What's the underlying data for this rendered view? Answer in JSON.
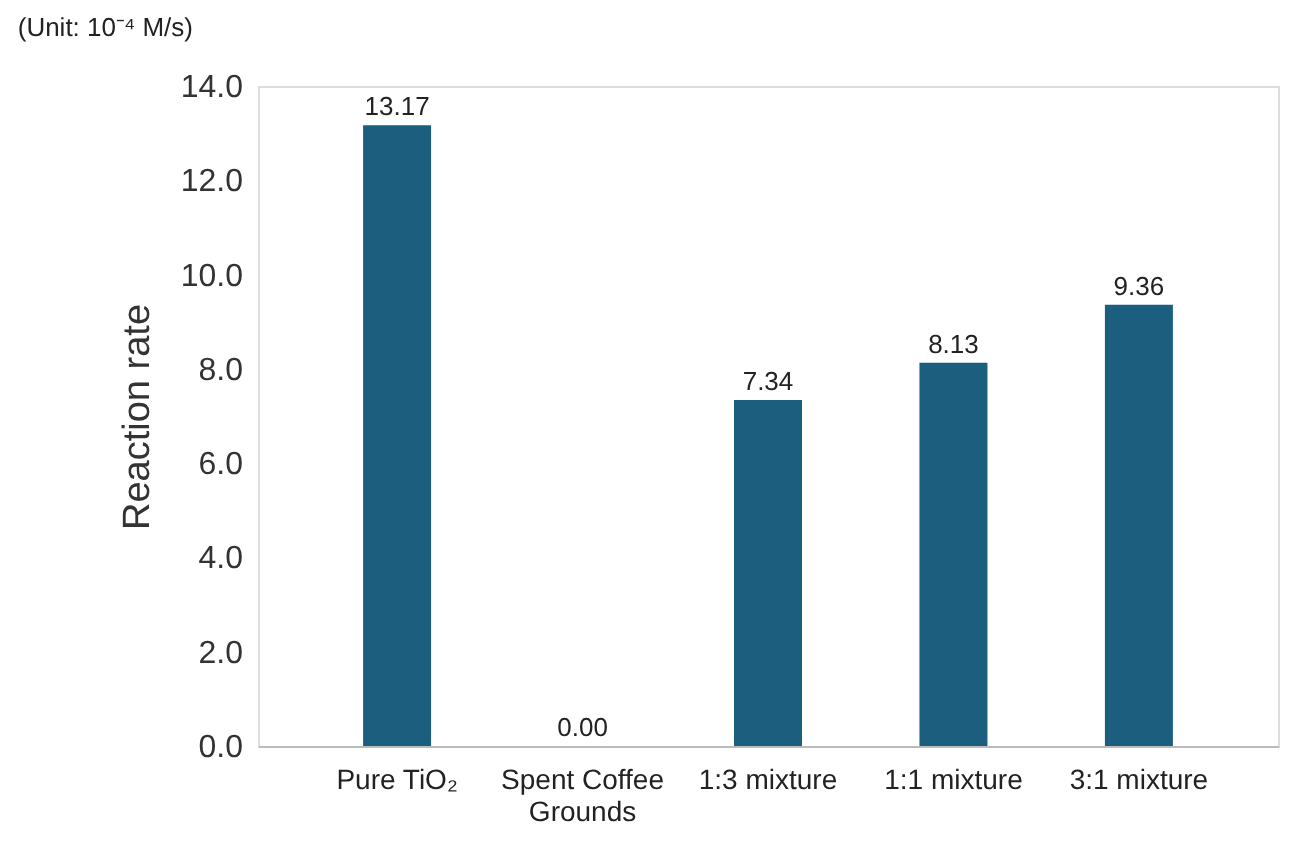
{
  "chart_data": {
    "type": "bar",
    "categories": [
      "Pure TiO₂",
      "Spent Coffee Grounds",
      "1:3 mixture",
      "1:1 mixture",
      "3:1 mixture"
    ],
    "values": [
      13.17,
      0.0,
      7.34,
      8.13,
      9.36
    ],
    "value_labels": [
      "13.17",
      "0.00",
      "7.34",
      "8.13",
      "9.36"
    ],
    "color": "#1b5e7e",
    "ylabel": "Reaction rate",
    "annotations": [
      "(Unit: 10⁻⁴ M/s)"
    ],
    "ylim": [
      0,
      14
    ],
    "yticks": [
      {
        "value": 0,
        "label": "0.0"
      },
      {
        "value": 2,
        "label": "2.0"
      },
      {
        "value": 4,
        "label": "4.0"
      },
      {
        "value": 6,
        "label": "6.0"
      },
      {
        "value": 8,
        "label": "8.0"
      },
      {
        "value": 10,
        "label": "10.0"
      },
      {
        "value": 12,
        "label": "12.0"
      },
      {
        "value": 14,
        "label": "14.0"
      }
    ],
    "grid": false
  }
}
